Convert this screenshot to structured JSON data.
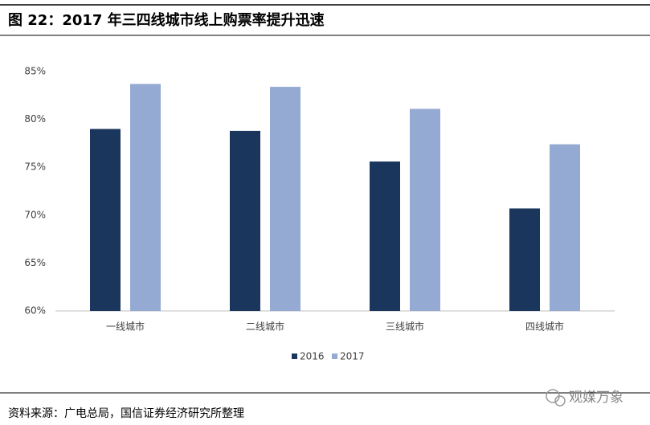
{
  "chart_data": {
    "type": "bar",
    "title": "图 22：2017 年三四线城市线上购票率提升迅速",
    "source": "资料来源：广电总局，国信证券经济研究所整理",
    "watermark": "观媒万象",
    "categories": [
      "一线城市",
      "二线城市",
      "三线城市",
      "四线城市"
    ],
    "series": [
      {
        "name": "2016",
        "color": "#1b365d",
        "values": [
          79.0,
          78.8,
          75.6,
          70.7
        ]
      },
      {
        "name": "2017",
        "color": "#94aad3",
        "values": [
          83.7,
          83.4,
          81.1,
          77.4
        ]
      }
    ],
    "ylim": [
      60,
      85
    ],
    "yticks": [
      {
        "value": 60,
        "label": "60%"
      },
      {
        "value": 65,
        "label": "65%"
      },
      {
        "value": 70,
        "label": "70%"
      },
      {
        "value": 75,
        "label": "75%"
      },
      {
        "value": 80,
        "label": "80%"
      },
      {
        "value": 85,
        "label": "85%"
      }
    ],
    "grid": false,
    "legend": "bottom"
  }
}
